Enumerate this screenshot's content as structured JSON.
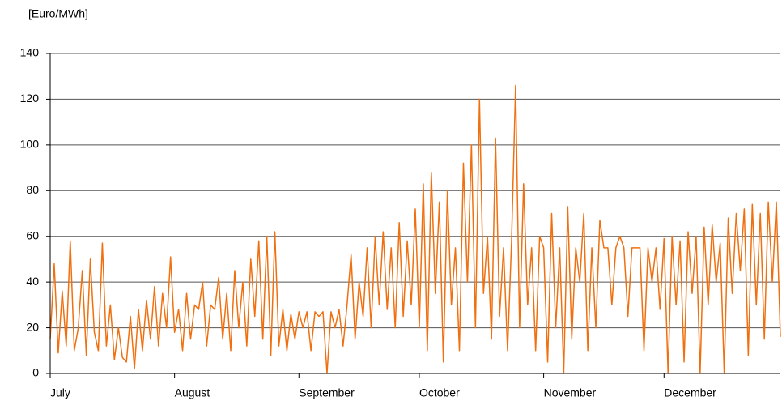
{
  "chart_data": {
    "type": "line",
    "y_label": "[Euro/MWh]",
    "color": "#f07010",
    "grid": true,
    "xlim": [
      0,
      182
    ],
    "xticks": [
      {
        "value": 0,
        "label": "July"
      },
      {
        "value": 31,
        "label": "August"
      },
      {
        "value": 62,
        "label": "September"
      },
      {
        "value": 92,
        "label": "October"
      },
      {
        "value": 123,
        "label": "November"
      },
      {
        "value": 153,
        "label": "December"
      }
    ],
    "ylim": [
      0,
      140
    ],
    "yticks": [
      0,
      20,
      40,
      60,
      80,
      100,
      120,
      140
    ],
    "x": [
      0,
      1,
      2,
      3,
      4,
      5,
      6,
      7,
      8,
      9,
      10,
      11,
      12,
      13,
      14,
      15,
      16,
      17,
      18,
      19,
      20,
      21,
      22,
      23,
      24,
      25,
      26,
      27,
      28,
      29,
      30,
      31,
      32,
      33,
      34,
      35,
      36,
      37,
      38,
      39,
      40,
      41,
      42,
      43,
      44,
      45,
      46,
      47,
      48,
      49,
      50,
      51,
      52,
      53,
      54,
      55,
      56,
      57,
      58,
      59,
      60,
      61,
      62,
      63,
      64,
      65,
      66,
      67,
      68,
      69,
      70,
      71,
      72,
      73,
      74,
      75,
      76,
      77,
      78,
      79,
      80,
      81,
      82,
      83,
      84,
      85,
      86,
      87,
      88,
      89,
      90,
      91,
      92,
      93,
      94,
      95,
      96,
      97,
      98,
      99,
      100,
      101,
      102,
      103,
      104,
      105,
      106,
      107,
      108,
      109,
      110,
      111,
      112,
      113,
      114,
      115,
      116,
      117,
      118,
      119,
      120,
      121,
      122,
      123,
      124,
      125,
      126,
      127,
      128,
      129,
      130,
      131,
      132,
      133,
      134,
      135,
      136,
      137,
      138,
      139,
      140,
      141,
      142,
      143,
      144,
      145,
      146,
      147,
      148,
      149,
      150,
      151,
      152,
      153,
      154,
      155,
      156,
      157,
      158,
      159,
      160,
      161,
      162,
      163,
      164,
      165,
      166,
      167,
      168,
      169,
      170,
      171,
      172,
      173,
      174,
      175,
      176,
      177,
      178,
      179,
      180,
      181,
      182
    ],
    "values": [
      15,
      48,
      9,
      36,
      12,
      58,
      10,
      20,
      45,
      8,
      50,
      18,
      10,
      57,
      12,
      30,
      6,
      20,
      7,
      5,
      25,
      2,
      28,
      10,
      32,
      15,
      38,
      12,
      35,
      20,
      51,
      18,
      28,
      10,
      35,
      15,
      30,
      28,
      40,
      12,
      30,
      28,
      42,
      15,
      35,
      10,
      45,
      20,
      40,
      12,
      50,
      25,
      58,
      15,
      60,
      8,
      62,
      12,
      28,
      10,
      26,
      15,
      27,
      20,
      27,
      10,
      27,
      25,
      27,
      0,
      27,
      20,
      28,
      12,
      30,
      52,
      15,
      40,
      25,
      55,
      20,
      60,
      30,
      62,
      28,
      55,
      20,
      66,
      25,
      58,
      30,
      72,
      20,
      83,
      10,
      88,
      35,
      75,
      5,
      80,
      30,
      55,
      10,
      92,
      40,
      100,
      20,
      120,
      35,
      60,
      15,
      103,
      25,
      55,
      10,
      58,
      126,
      20,
      83,
      30,
      55,
      10,
      60,
      55,
      5,
      70,
      20,
      55,
      0,
      73,
      15,
      55,
      40,
      70,
      10,
      55,
      20,
      67,
      55,
      55,
      30,
      55,
      60,
      55,
      25,
      55,
      55,
      55,
      10,
      55,
      40,
      55,
      28,
      59,
      0,
      60,
      30,
      58,
      5,
      62,
      35,
      60,
      0,
      64,
      30,
      65,
      40,
      57,
      0,
      68,
      35,
      70,
      45,
      72,
      8,
      74,
      30,
      70,
      15,
      75,
      40,
      75,
      16
    ]
  }
}
